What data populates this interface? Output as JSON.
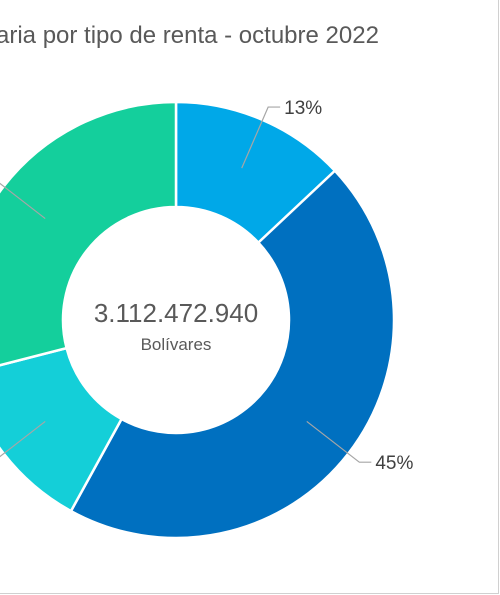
{
  "chart_data": {
    "type": "pie",
    "title": "aria por tipo de renta - octubre 2022",
    "center_value": "3.112.472.940",
    "center_unit": "Bolívares",
    "slices": [
      {
        "value": 13,
        "label": "13%",
        "color": "#00a8e8"
      },
      {
        "value": 45,
        "label": "45%",
        "color": "#0070c0"
      },
      {
        "value": 13,
        "label": "",
        "color": "#14cfd8"
      },
      {
        "value": 29,
        "label": "",
        "color": "#14cf9c"
      }
    ],
    "legend": "none"
  }
}
